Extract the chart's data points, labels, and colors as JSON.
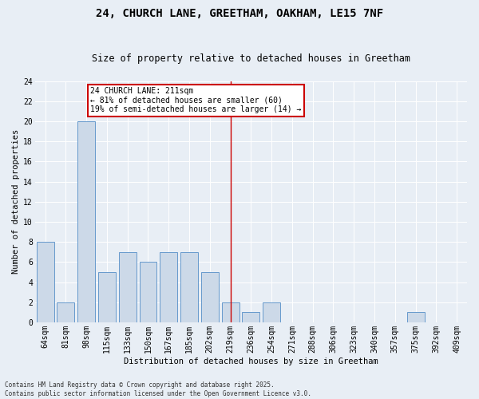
{
  "title": "24, CHURCH LANE, GREETHAM, OAKHAM, LE15 7NF",
  "subtitle": "Size of property relative to detached houses in Greetham",
  "xlabel": "Distribution of detached houses by size in Greetham",
  "ylabel": "Number of detached properties",
  "categories": [
    "64sqm",
    "81sqm",
    "98sqm",
    "115sqm",
    "133sqm",
    "150sqm",
    "167sqm",
    "185sqm",
    "202sqm",
    "219sqm",
    "236sqm",
    "254sqm",
    "271sqm",
    "288sqm",
    "306sqm",
    "323sqm",
    "340sqm",
    "357sqm",
    "375sqm",
    "392sqm",
    "409sqm"
  ],
  "values": [
    8,
    2,
    20,
    5,
    7,
    6,
    7,
    7,
    5,
    2,
    1,
    2,
    0,
    0,
    0,
    0,
    0,
    0,
    1,
    0,
    0
  ],
  "bar_color": "#ccd9e8",
  "bar_edge_color": "#6699cc",
  "vline_x_idx": 9,
  "vline_color": "#cc0000",
  "annotation_title": "24 CHURCH LANE: 211sqm",
  "annotation_line1": "← 81% of detached houses are smaller (60)",
  "annotation_line2": "19% of semi-detached houses are larger (14) →",
  "annotation_box_color": "#cc0000",
  "ylim": [
    0,
    24
  ],
  "yticks": [
    0,
    2,
    4,
    6,
    8,
    10,
    12,
    14,
    16,
    18,
    20,
    22,
    24
  ],
  "footer_line1": "Contains HM Land Registry data © Crown copyright and database right 2025.",
  "footer_line2": "Contains public sector information licensed under the Open Government Licence v3.0.",
  "bg_color": "#e8eef5",
  "plot_bg_color": "#e8eef5",
  "title_fontsize": 10,
  "subtitle_fontsize": 8.5,
  "tick_fontsize": 7,
  "ylabel_fontsize": 7.5,
  "xlabel_fontsize": 7.5,
  "footer_fontsize": 5.5,
  "annotation_fontsize": 7
}
